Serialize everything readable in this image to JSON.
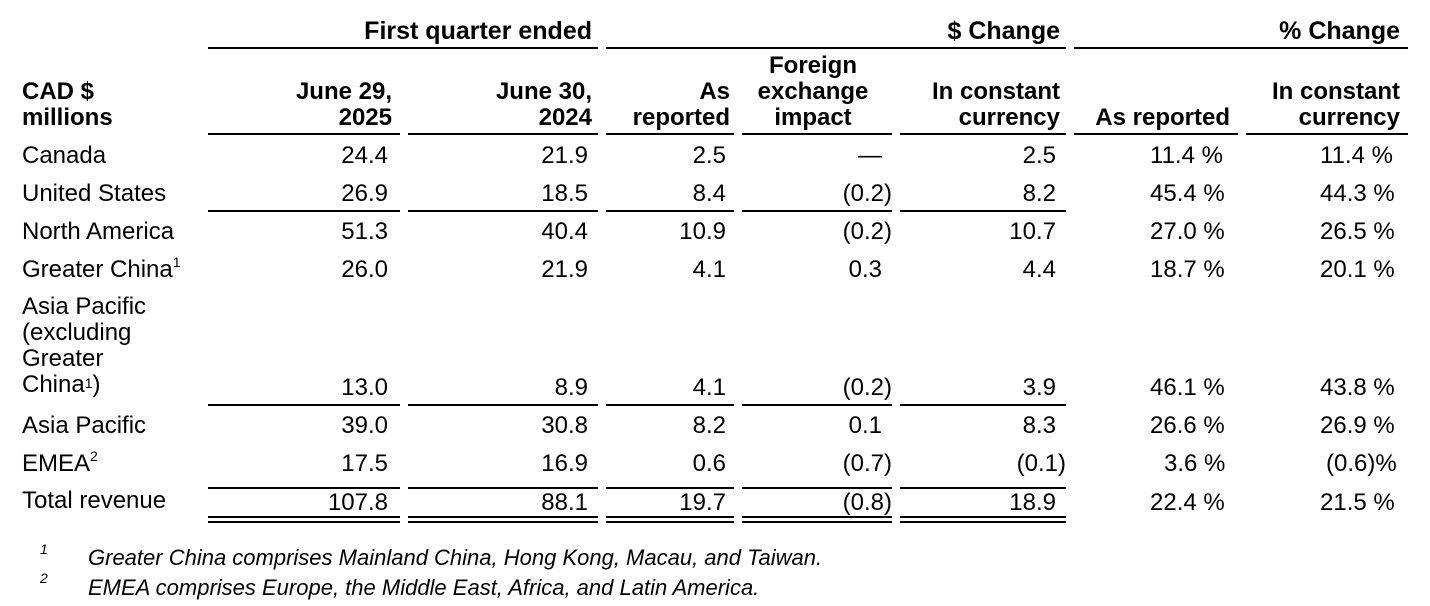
{
  "group_headers": {
    "first_quarter": "First quarter ended",
    "dollar_change": "$ Change",
    "pct_change": "% Change"
  },
  "column_headers": {
    "label": [
      "CAD $",
      "millions"
    ],
    "col1": [
      "June 29,",
      "2025"
    ],
    "col2": [
      "June 30,",
      "2024"
    ],
    "col3": [
      "As",
      "reported"
    ],
    "col4": [
      "Foreign",
      "exchange",
      "impact"
    ],
    "col5": [
      "In constant",
      "currency"
    ],
    "col6": [
      "As reported"
    ],
    "col7": [
      "In constant",
      "currency"
    ]
  },
  "rows": [
    {
      "label": "Canada",
      "sup": "",
      "c1": "24.4",
      "c2": "21.9",
      "c3": "2.5",
      "c4": "—",
      "c5": "2.5",
      "c6": "11.4",
      "c6s": "%",
      "c7": "11.4",
      "c7s": "%"
    },
    {
      "label": "United States",
      "sup": "",
      "c1": "26.9",
      "c2": "18.5",
      "c3": "8.4",
      "c4": "(0.2)",
      "c5": "8.2",
      "c6": "45.4",
      "c6s": "%",
      "c7": "44.3",
      "c7s": "%"
    },
    {
      "label": "North America",
      "sup": "",
      "c1": "51.3",
      "c2": "40.4",
      "c3": "10.9",
      "c4": "(0.2)",
      "c5": "10.7",
      "c6": "27.0",
      "c6s": "%",
      "c7": "26.5",
      "c7s": "%"
    },
    {
      "label": "Greater China",
      "sup": "1",
      "c1": "26.0",
      "c2": "21.9",
      "c3": "4.1",
      "c4": "0.3",
      "c5": "4.4",
      "c6": "18.7",
      "c6s": "%",
      "c7": "20.1",
      "c7s": "%"
    },
    {
      "label_lines": [
        "Asia Pacific",
        "(excluding",
        "Greater",
        "China"
      ],
      "label_tail": ")",
      "sup": "1",
      "c1": "13.0",
      "c2": "8.9",
      "c3": "4.1",
      "c4": "(0.2)",
      "c5": "3.9",
      "c6": "46.1",
      "c6s": "%",
      "c7": "43.8",
      "c7s": "%"
    },
    {
      "label": "Asia Pacific",
      "sup": "",
      "c1": "39.0",
      "c2": "30.8",
      "c3": "8.2",
      "c4": "0.1",
      "c5": "8.3",
      "c6": "26.6",
      "c6s": "%",
      "c7": "26.9",
      "c7s": "%"
    },
    {
      "label": "EMEA",
      "sup": "2",
      "c1": "17.5",
      "c2": "16.9",
      "c3": "0.6",
      "c4": "(0.7)",
      "c5": "(0.1)",
      "c6": "3.6",
      "c6s": "%",
      "c7": "(0.6)",
      "c7s": "%"
    },
    {
      "label": "Total revenue",
      "sup": "",
      "c1": "107.8",
      "c2": "88.1",
      "c3": "19.7",
      "c4": "(0.8)",
      "c5": "18.9",
      "c6": "22.4",
      "c6s": "%",
      "c7": "21.5",
      "c7s": "%"
    }
  ],
  "footnotes": [
    {
      "mark": "1",
      "text": "Greater China comprises Mainland China, Hong Kong, Macau, and Taiwan."
    },
    {
      "mark": "2",
      "text": "EMEA comprises Europe, the Middle East, Africa, and Latin America."
    }
  ]
}
